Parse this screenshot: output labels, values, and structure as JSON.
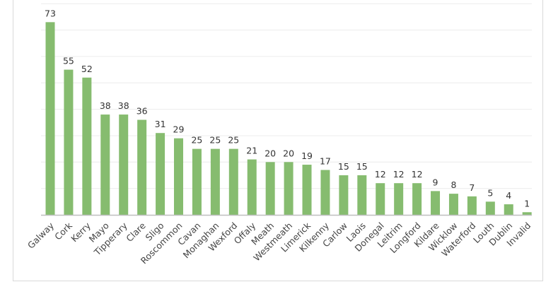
{
  "chart_data": {
    "type": "bar",
    "title": "",
    "xlabel": "",
    "ylabel": "",
    "ylim": [
      0,
      80
    ],
    "grid": true,
    "legend": "none",
    "bar_color": "#86bc6f",
    "categories": [
      "Galway",
      "Cork",
      "Kerry",
      "Mayo",
      "Tipperary",
      "Clare",
      "Sligo",
      "Roscommon",
      "Cavan",
      "Monaghan",
      "Wexford",
      "Offaly",
      "Meath",
      "Westmeath",
      "Limerick",
      "Kilkenny",
      "Carlow",
      "Laois",
      "Donegal",
      "Leitrim",
      "Longford",
      "Kildare",
      "Wicklow",
      "Waterford",
      "Louth",
      "Dublin",
      "Invalid"
    ],
    "values": [
      73,
      55,
      52,
      38,
      38,
      36,
      31,
      29,
      25,
      25,
      25,
      21,
      20,
      20,
      19,
      17,
      15,
      15,
      12,
      12,
      12,
      9,
      8,
      7,
      5,
      4,
      1
    ]
  }
}
